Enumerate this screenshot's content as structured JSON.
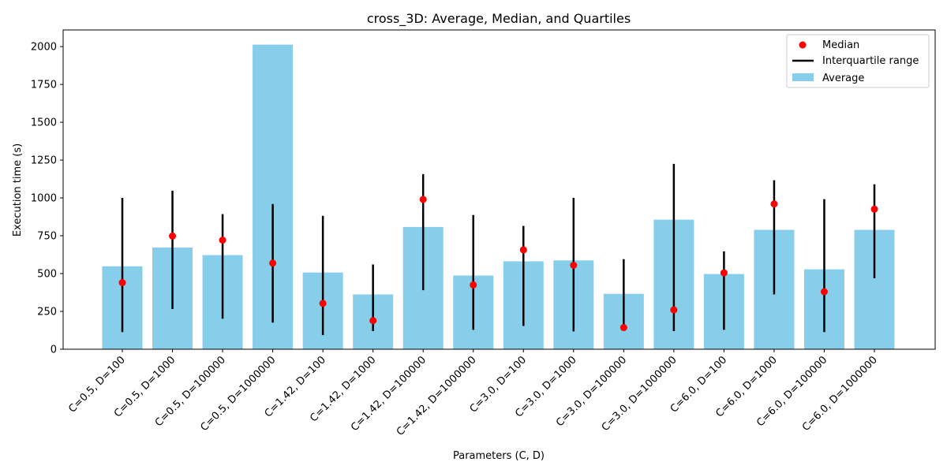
{
  "chart_data": {
    "type": "bar",
    "title": "cross_3D: Average, Median, and Quartiles",
    "xlabel": "Parameters (C, D)",
    "ylabel": "Execution time (s)",
    "ylim": [
      0,
      2110
    ],
    "yticks": [
      0,
      250,
      500,
      750,
      1000,
      1250,
      1500,
      1750,
      2000
    ],
    "grid": false,
    "legend_position": "top-right",
    "categories": [
      "C=0.5, D=100",
      "C=0.5, D=1000",
      "C=0.5, D=100000",
      "C=0.5, D=1000000",
      "C=1.42, D=100",
      "C=1.42, D=1000",
      "C=1.42, D=100000",
      "C=1.42, D=1000000",
      "C=3.0, D=100",
      "C=3.0, D=1000",
      "C=3.0, D=100000",
      "C=3.0, D=1000000",
      "C=6.0, D=100",
      "C=6.0, D=1000",
      "C=6.0, D=100000",
      "C=6.0, D=1000000"
    ],
    "series": [
      {
        "name": "Average",
        "color": "#87ceeb",
        "values": [
          548,
          672,
          622,
          2013,
          507,
          362,
          808,
          487,
          581,
          587,
          366,
          856,
          497,
          789,
          528,
          789
        ]
      },
      {
        "name": "Median",
        "color": "#ff0000",
        "values": [
          440,
          748,
          721,
          569,
          303,
          189,
          990,
          425,
          657,
          555,
          143,
          260,
          505,
          960,
          380,
          926
        ]
      },
      {
        "name": "Interquartile range",
        "color": "#000000",
        "q1": [
          113,
          266,
          202,
          176,
          93,
          120,
          390,
          128,
          154,
          118,
          130,
          120,
          128,
          362,
          113,
          469
        ],
        "q3": [
          1000,
          1048,
          893,
          960,
          882,
          560,
          1157,
          887,
          815,
          1000,
          595,
          1225,
          647,
          1117,
          992,
          1090
        ]
      }
    ],
    "legend": [
      "Median",
      "Interquartile range",
      "Average"
    ]
  }
}
